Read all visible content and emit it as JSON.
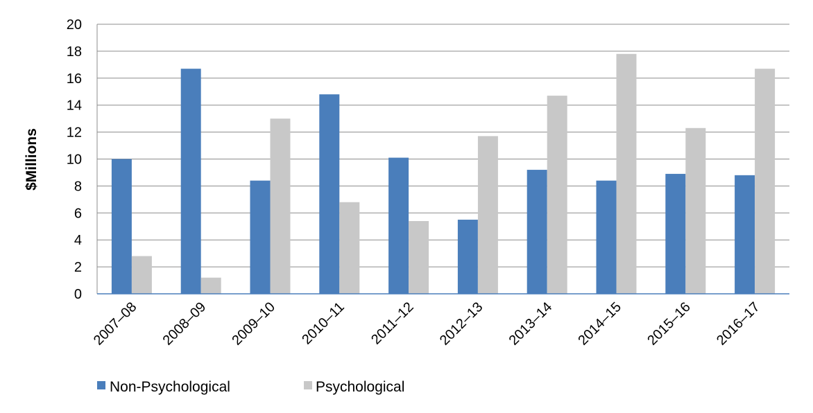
{
  "chart_data": {
    "type": "bar",
    "title": "",
    "xlabel": "",
    "ylabel": "$Millions",
    "ylim": [
      0,
      20
    ],
    "yticks": [
      0,
      2,
      4,
      6,
      8,
      10,
      12,
      14,
      16,
      18,
      20
    ],
    "grid": true,
    "legend_position": "bottom-left",
    "categories": [
      "2007–08",
      "2008–09",
      "2009–10",
      "2010–11",
      "2011–12",
      "2012–13",
      "2013–14",
      "2014–15",
      "2015–16",
      "2016–17"
    ],
    "series": [
      {
        "name": "Non-Psychological",
        "color": "#4a7ebb",
        "values": [
          10.0,
          16.7,
          8.4,
          14.8,
          10.1,
          5.5,
          9.2,
          8.4,
          8.9,
          8.8
        ]
      },
      {
        "name": "Psychological",
        "color": "#c8c8c8",
        "values": [
          2.8,
          1.2,
          13.0,
          6.8,
          5.4,
          11.7,
          14.7,
          17.8,
          12.3,
          16.7
        ]
      }
    ]
  }
}
